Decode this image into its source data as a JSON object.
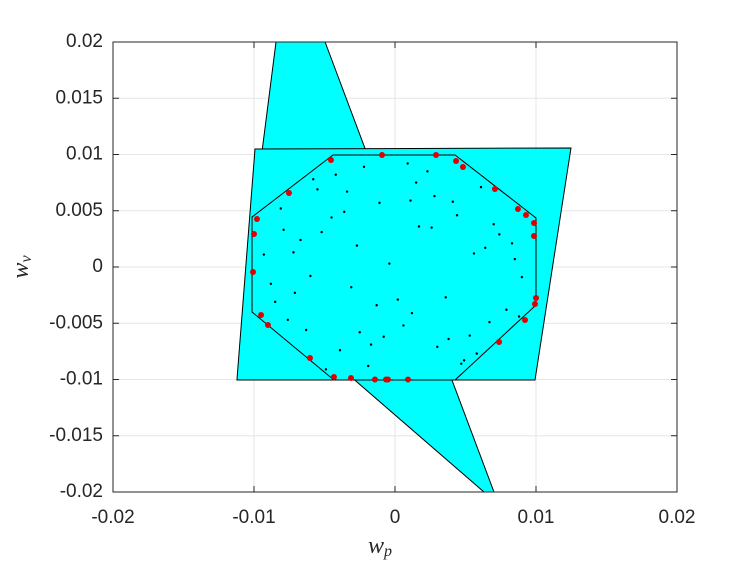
{
  "chart_data": {
    "type": "scatter",
    "xlabel": {
      "text": "w",
      "subscript": "p"
    },
    "ylabel": {
      "text": "w",
      "subscript": "v"
    },
    "xlim": [
      -0.02,
      0.02
    ],
    "ylim": [
      -0.02,
      0.02
    ],
    "xticks": [
      -0.02,
      -0.01,
      0,
      0.01,
      0.02
    ],
    "yticks": [
      -0.02,
      -0.015,
      -0.01,
      -0.005,
      0,
      0.005,
      0.01,
      0.015,
      0.02
    ],
    "grid": true,
    "polygons": [
      {
        "color": "#00ffff",
        "edge": "#000000",
        "x": [
          -0.00844,
          -0.00496,
          0.00702,
          0.00631,
          -0.01064
        ],
        "y": [
          0.02,
          0.02,
          -0.02,
          -0.02,
          -0.0016
        ]
      },
      {
        "color": "#00ffff",
        "edge": "#000000",
        "x": [
          -0.00993,
          0.01248,
          0.00993,
          -0.01121
        ],
        "y": [
          0.01049,
          0.01058,
          -0.01004,
          -0.01004
        ]
      },
      {
        "color": "none",
        "edge": "#000000",
        "x": [
          -0.0044,
          0.00426,
          0.01,
          0.01,
          0.00426,
          -0.00433,
          -0.01014,
          -0.01014
        ],
        "y": [
          0.00996,
          0.00996,
          0.00436,
          -0.00338,
          -0.01004,
          -0.01004,
          -0.004,
          0.00444
        ]
      }
    ],
    "series": [
      {
        "color": "#000000",
        "size": 1.2,
        "x": [
          0.0012,
          -0.0034,
          0.0056,
          -0.0071,
          0.0023,
          -0.0008,
          0.0067,
          -0.0052,
          0.0041,
          -0.0019,
          0.0085,
          -0.0088,
          0.003,
          -0.0045,
          0.0074,
          -0.0063,
          0.0009,
          -0.0027,
          0.0049,
          -0.0081,
          0.0061,
          -0.0013,
          0.0036,
          -0.0058,
          0.009,
          -0.0039,
          0.0017,
          -0.0076,
          0.0053,
          -0.0004,
          0.0028,
          -0.0067,
          0.0079,
          -0.0022,
          0.0044,
          -0.0093,
          0.0006,
          -0.0049,
          0.007,
          -0.0031,
          0.0058,
          -0.0085,
          0.0015,
          -0.0011,
          0.0083,
          -0.0055,
          0.0038,
          -0.0072,
          0.0002,
          -0.0042,
          0.0064,
          -0.0017,
          0.0026,
          -0.006,
          0.0088,
          -0.0036,
          0.0047,
          -0.0079,
          0.0011,
          -0.0025
        ],
        "y": [
          -0.0041,
          0.0067,
          0.0012,
          -0.0023,
          0.0085,
          -0.0062,
          -0.0049,
          0.0031,
          0.0058,
          -0.0088,
          0.0007,
          -0.0015,
          -0.0071,
          0.0044,
          0.0029,
          -0.0056,
          0.0092,
          0.0019,
          -0.0083,
          0.0052,
          0.0071,
          -0.0034,
          -0.0027,
          0.0078,
          -0.0009,
          -0.0074,
          0.0036,
          -0.0047,
          -0.0061,
          0.0003,
          0.0063,
          0.0024,
          -0.0038,
          0.0089,
          0.0046,
          0.0011,
          -0.0052,
          -0.0091,
          0.0038,
          -0.0018,
          -0.0077,
          -0.0031,
          0.0075,
          0.0057,
          0.0021,
          0.0069,
          -0.0064,
          0.0013,
          -0.0029,
          0.0082,
          0.0017,
          -0.0069,
          0.0035,
          -0.0008,
          -0.0044,
          0.0049,
          -0.0086,
          0.0033,
          0.0059,
          -0.0058
        ]
      },
      {
        "color": "#e00000",
        "size": 3,
        "x": [
          -0.00454,
          -0.00092,
          0.00291,
          0.00433,
          0.00482,
          0.00709,
          0.00872,
          0.00929,
          0.00986,
          0.00986,
          0.01,
          0.00993,
          0.00922,
          0.00738,
          0.00092,
          -0.0005,
          -0.00064,
          -0.00142,
          -0.00312,
          -0.00433,
          -0.00603,
          -0.00901,
          -0.0095,
          -0.01007,
          -0.01,
          -0.00979,
          -0.00752
        ],
        "y": [
          0.00951,
          0.00996,
          0.00996,
          0.00942,
          0.00889,
          0.00693,
          0.00516,
          0.00462,
          0.00391,
          0.00276,
          -0.00276,
          -0.00329,
          -0.00471,
          -0.00667,
          -0.01,
          -0.01,
          -0.01,
          -0.01,
          -0.00987,
          -0.00978,
          -0.00809,
          -0.00516,
          -0.00427,
          -0.00044,
          0.00293,
          0.00427,
          0.00658
        ]
      }
    ]
  }
}
